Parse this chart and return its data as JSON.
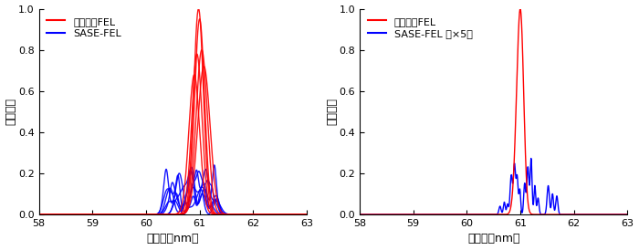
{
  "xlim": [
    58,
    63
  ],
  "ylim": [
    0.0,
    1.0
  ],
  "xticks": [
    58,
    59,
    60,
    61,
    62,
    63
  ],
  "yticks": [
    0.0,
    0.2,
    0.4,
    0.6,
    0.8,
    1.0
  ],
  "xlabel": "波長　［nm］",
  "ylabel": "光の強度",
  "red_color": "#ff0000",
  "blue_color": "#0000ff",
  "legend1_labels": [
    "シード型FEL",
    "SASE-FEL"
  ],
  "legend2_labels": [
    "シード型FEL",
    "SASE-FEL （×5）"
  ],
  "background_color": "#ffffff",
  "linewidth": 1.0,
  "figsize": [
    7.0,
    2.74
  ],
  "dpi": 100
}
